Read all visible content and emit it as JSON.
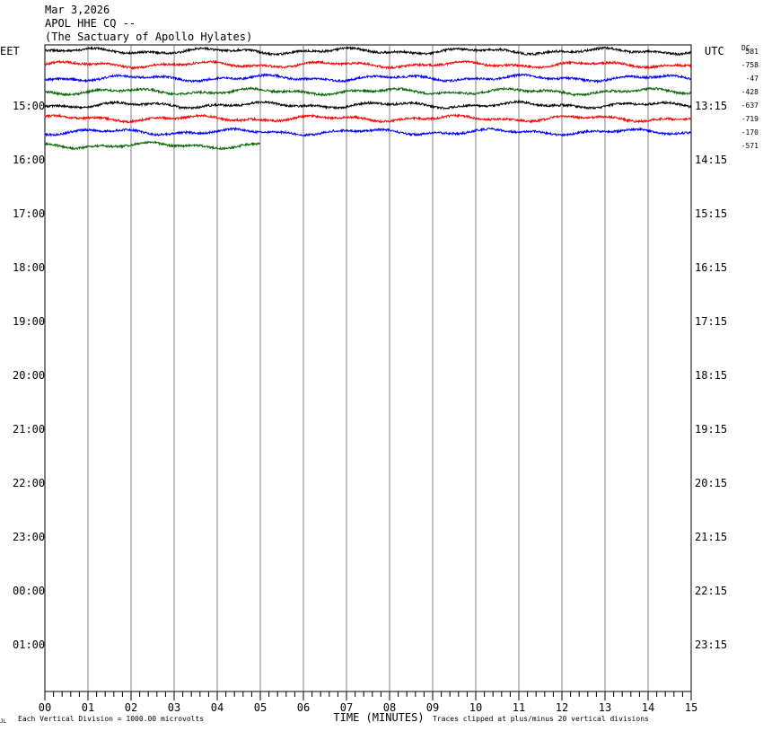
{
  "header": {
    "date": "Mar 3,2026",
    "station": "APOL HHE CQ --",
    "site": "(The Sactuary of Apollo Hylates)"
  },
  "labels": {
    "left_tz": "EET",
    "right_tz": "UTC",
    "dc_label": "DC",
    "xlabel": "TIME (MINUTES)",
    "footer_left": "Each Vertical Division = 1000.00 microvolts",
    "footer_right": "Traces clipped at plus/minus 20 vertical divisions",
    "corner_mark": "JL"
  },
  "colors": {
    "grid": "#808080",
    "traces": [
      "#000000",
      "#ff0000",
      "#0000ff",
      "#006400"
    ]
  },
  "chart_data": {
    "type": "line",
    "title": "APOL HHE CQ --",
    "xlabel": "TIME (MINUTES)",
    "xlim": [
      0,
      15
    ],
    "x_ticks": [
      "00",
      "01",
      "02",
      "03",
      "04",
      "05",
      "06",
      "07",
      "08",
      "09",
      "10",
      "11",
      "12",
      "13",
      "14",
      "15"
    ],
    "left_hour_labels": [
      "15:00",
      "16:00",
      "17:00",
      "18:00",
      "19:00",
      "20:00",
      "21:00",
      "22:00",
      "23:00",
      "00:00",
      "01:00"
    ],
    "right_hour_labels": [
      "13:15",
      "14:15",
      "15:15",
      "16:15",
      "17:15",
      "18:15",
      "19:15",
      "20:15",
      "21:15",
      "22:15",
      "23:15"
    ],
    "dc_offsets": [
      "581",
      "-758",
      "-47",
      "-428",
      "-637",
      "-719",
      "-170",
      "-571"
    ],
    "traces": [
      {
        "row": 0,
        "color": "#000000",
        "end_minute": 15
      },
      {
        "row": 1,
        "color": "#ff0000",
        "end_minute": 15
      },
      {
        "row": 2,
        "color": "#0000ff",
        "end_minute": 15
      },
      {
        "row": 3,
        "color": "#006400",
        "end_minute": 15
      },
      {
        "row": 4,
        "color": "#000000",
        "end_minute": 15
      },
      {
        "row": 5,
        "color": "#ff0000",
        "end_minute": 15
      },
      {
        "row": 6,
        "color": "#0000ff",
        "end_minute": 15
      },
      {
        "row": 7,
        "color": "#006400",
        "end_minute": 5
      }
    ]
  }
}
